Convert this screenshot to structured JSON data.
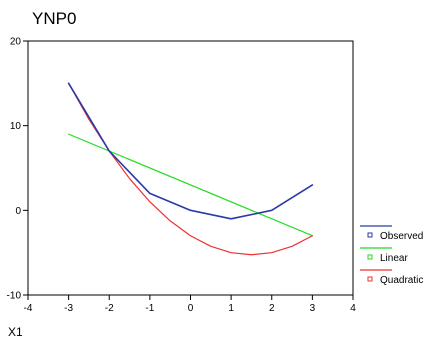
{
  "chart_data": {
    "type": "line",
    "title": "YNP0",
    "xlabel": "X1",
    "ylabel": "",
    "xlim": [
      -4,
      4
    ],
    "ylim": [
      -10,
      20
    ],
    "xticks": [
      -4,
      -3,
      -2,
      -1,
      0,
      1,
      2,
      3,
      4
    ],
    "yticks": [
      -10,
      0,
      10,
      20
    ],
    "grid": false,
    "legend_position": "right",
    "series": [
      {
        "name": "Observed",
        "color": "#2a3aa6",
        "x": [
          -3,
          -2,
          -1,
          0,
          1,
          2,
          3
        ],
        "y": [
          15,
          7,
          2,
          0,
          -1,
          0,
          3
        ]
      },
      {
        "name": "Linear",
        "color": "#22dd22",
        "x": [
          -3,
          3
        ],
        "y": [
          9,
          -3
        ]
      },
      {
        "name": "Quadratic",
        "color": "#ef3131",
        "x": [
          -3,
          -2.5,
          -2,
          -1.5,
          -1,
          -0.5,
          0,
          0.5,
          1,
          1.5,
          2,
          2.5,
          3
        ],
        "y": [
          15,
          10.75,
          7,
          3.75,
          1,
          -1.25,
          -3,
          -4.25,
          -5,
          -5.25,
          -5,
          -4.25,
          -3
        ]
      }
    ]
  }
}
